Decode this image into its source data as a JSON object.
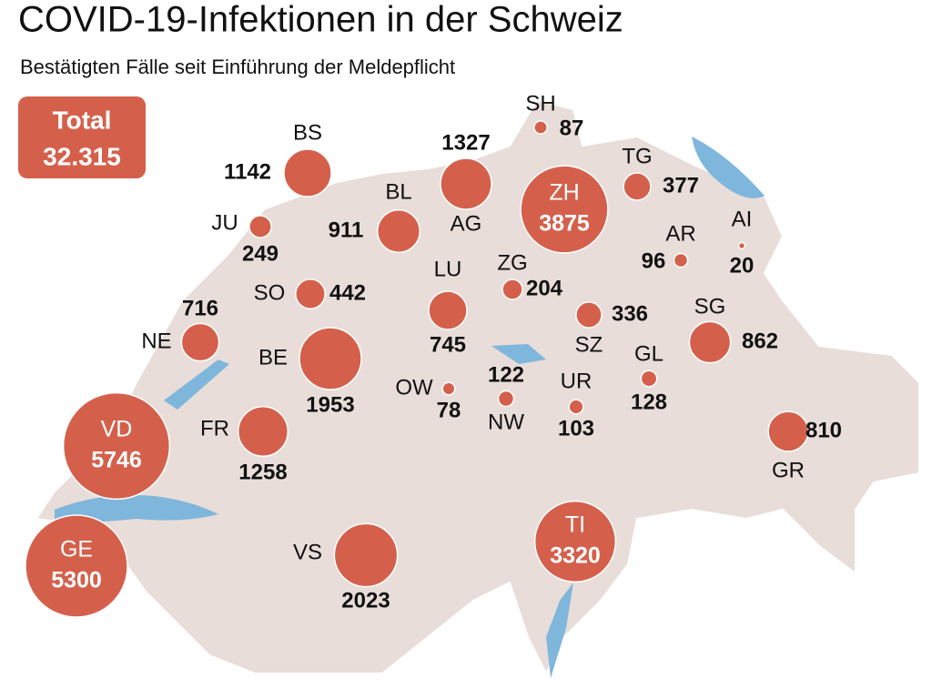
{
  "title": "COVID-19-Infektionen in der Schweiz",
  "subtitle": "Bestätigten Fälle seit Einführung der Meldepflicht",
  "total": {
    "label": "Total",
    "value": "32.315"
  },
  "cantons": [
    {
      "code": "BS",
      "value": 1142
    },
    {
      "code": "AG",
      "value": 1327
    },
    {
      "code": "ZH",
      "value": 3875
    },
    {
      "code": "SH",
      "value": 87
    },
    {
      "code": "TG",
      "value": 377
    },
    {
      "code": "BL",
      "value": 911
    },
    {
      "code": "JU",
      "value": 249
    },
    {
      "code": "AR",
      "value": 96
    },
    {
      "code": "AI",
      "value": 20
    },
    {
      "code": "SO",
      "value": 442
    },
    {
      "code": "LU",
      "value": 745
    },
    {
      "code": "ZG",
      "value": 204
    },
    {
      "code": "SZ",
      "value": 336
    },
    {
      "code": "SG",
      "value": 862
    },
    {
      "code": "NE",
      "value": 716
    },
    {
      "code": "BE",
      "value": 1953
    },
    {
      "code": "OW",
      "value": 78
    },
    {
      "code": "NW",
      "value": 122
    },
    {
      "code": "UR",
      "value": 103
    },
    {
      "code": "GL",
      "value": 128
    },
    {
      "code": "FR",
      "value": 1258
    },
    {
      "code": "VD",
      "value": 5746
    },
    {
      "code": "GR",
      "value": 810
    },
    {
      "code": "GE",
      "value": 5300
    },
    {
      "code": "VS",
      "value": 2023
    },
    {
      "code": "TI",
      "value": 3320
    }
  ]
}
